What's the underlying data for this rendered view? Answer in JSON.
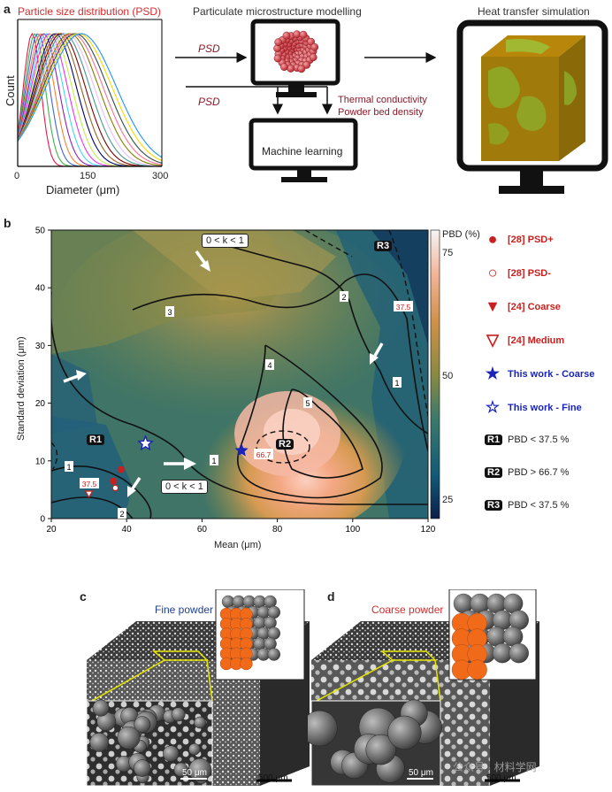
{
  "panel_a": {
    "label": "a",
    "psd_title": "Particle size distribution (PSD)",
    "xlabel": "Diameter (μm)",
    "ylabel": "Count",
    "xticks": [
      "0",
      "150",
      "300"
    ],
    "arrow_psd_top": "PSD",
    "arrow_psd_bottom": "PSD",
    "modelling_title": "Particulate microstructure modelling",
    "heat_title": "Heat transfer simulation",
    "thermal_label": "Thermal conductivity",
    "density_label": "Powder bed density",
    "ml_label": "Machine learning"
  },
  "panel_b": {
    "label": "b",
    "ylabel": "Standard deviation (μm)",
    "xlabel": "Mean (μm)",
    "colorbar_title": "PBD (%)",
    "colorbar_ticks": [
      "75",
      "50",
      "25"
    ],
    "k_label_top": "0 < k < 1",
    "k_label_bottom": "0 < k < 1",
    "contour_labels": [
      "1",
      "1",
      "1",
      "2",
      "2",
      "3",
      "4",
      "5"
    ],
    "dashed_labels": [
      "37.5",
      "37.5",
      "66.7"
    ],
    "regions": [
      "R1",
      "R2",
      "R3"
    ]
  },
  "legend": [
    {
      "symbol": "filled-circle",
      "text": "[28] PSD+",
      "color": "#c8201e"
    },
    {
      "symbol": "open-circle",
      "text": "[28] PSD-",
      "color": "#c8201e"
    },
    {
      "symbol": "filled-triangle",
      "text": "[24] Coarse",
      "color": "#c8201e"
    },
    {
      "symbol": "open-triangle",
      "text": "[24] Medium",
      "color": "#c8201e"
    },
    {
      "symbol": "filled-star",
      "text": "This work - Coarse",
      "color": "#1a24b8"
    },
    {
      "symbol": "open-star",
      "text": "This work - Fine",
      "color": "#1a24b8"
    },
    {
      "symbol": "R1",
      "text": "PBD < 37.5 %",
      "color": "#222222"
    },
    {
      "symbol": "R2",
      "text": "PBD > 66.7 %",
      "color": "#222222"
    },
    {
      "symbol": "R3",
      "text": "PBD < 37.5 %",
      "color": "#222222"
    }
  ],
  "chart_data": {
    "type": "heatmap",
    "xlabel": "Mean (μm)",
    "ylabel": "Standard deviation (μm)",
    "xlim": [
      20,
      120
    ],
    "ylim": [
      0,
      50
    ],
    "x_ticks": [
      20,
      40,
      60,
      80,
      100,
      120
    ],
    "y_ticks": [
      0,
      10,
      20,
      30,
      40,
      50
    ],
    "colorbar": {
      "label": "PBD (%)",
      "ticks": [
        25,
        50,
        75
      ]
    },
    "points": [
      {
        "series": "[28] PSD+",
        "x": 38.5,
        "y": 8.5
      },
      {
        "series": "[28] PSD+",
        "x": 36.5,
        "y": 6.5
      },
      {
        "series": "[28] PSD-",
        "x": 37,
        "y": 5.3
      },
      {
        "series": "[24] Medium",
        "x": 30,
        "y": 4.3
      },
      {
        "series": "This work - Coarse",
        "x": 70.5,
        "y": 11.8
      },
      {
        "series": "This work - Fine",
        "x": 45,
        "y": 13
      }
    ]
  },
  "panel_c": {
    "label": "c",
    "title": "Fine powder",
    "scale_inset": "50 μm",
    "scale_main": "500 μm"
  },
  "panel_d": {
    "label": "d",
    "title": "Coarse powder",
    "scale_inset": "50 μm",
    "scale_main": "500 μm"
  },
  "watermark": "公众号 · 材料学网",
  "colors": {
    "red_series": "#c8201e",
    "blue_series": "#1a24b8",
    "title_red": "#d32c2c",
    "title_blue": "#1f3f8c",
    "orange_particles": "#f06a1a"
  }
}
